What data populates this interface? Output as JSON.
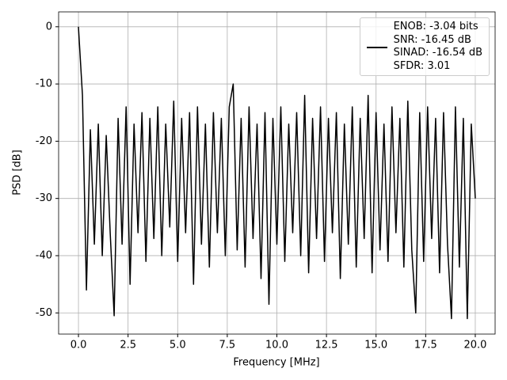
{
  "chart_data": {
    "type": "line",
    "xlabel": "Frequency [MHz]",
    "ylabel": "PSD [dB]",
    "x": [
      0,
      0.2,
      0.4,
      0.6,
      0.8,
      1,
      1.2,
      1.4,
      1.6,
      1.8,
      2,
      2.2,
      2.4,
      2.6,
      2.8,
      3,
      3.2,
      3.4,
      3.6,
      3.8,
      4,
      4.2,
      4.4,
      4.6,
      4.8,
      5,
      5.2,
      5.4,
      5.6,
      5.8,
      6,
      6.2,
      6.4,
      6.6,
      6.8,
      7,
      7.2,
      7.4,
      7.6,
      7.8,
      8,
      8.2,
      8.4,
      8.6,
      8.8,
      9,
      9.2,
      9.4,
      9.6,
      9.8,
      10,
      10.2,
      10.4,
      10.6,
      10.8,
      11,
      11.2,
      11.4,
      11.6,
      11.8,
      12,
      12.2,
      12.4,
      12.6,
      12.8,
      13,
      13.2,
      13.4,
      13.6,
      13.8,
      14,
      14.2,
      14.4,
      14.6,
      14.8,
      15,
      15.2,
      15.4,
      15.6,
      15.8,
      16,
      16.2,
      16.4,
      16.6,
      16.8,
      17,
      17.2,
      17.4,
      17.6,
      17.8,
      18,
      18.2,
      18.4,
      18.6,
      18.8,
      19,
      19.2,
      19.4,
      19.6,
      19.8,
      20
    ],
    "series": [
      {
        "name": "ENOB: -3.04 bits\nSNR: -16.45 dB\nSINAD: -16.54 dB\nSFDR: 3.01",
        "color": "#000000",
        "values": [
          0,
          -12,
          -46,
          -18,
          -38,
          -17,
          -40,
          -19,
          -36,
          -50.5,
          -16,
          -38,
          -14,
          -45,
          -17,
          -36,
          -15,
          -41,
          -16,
          -37,
          -14,
          -40,
          -17,
          -35,
          -13,
          -41,
          -16,
          -36,
          -15,
          -45,
          -14,
          -38,
          -17,
          -42,
          -15,
          -36,
          -16,
          -40,
          -14,
          -10,
          -39,
          -16,
          -42,
          -14,
          -37,
          -17,
          -44,
          -15,
          -48.5,
          -16,
          -38,
          -14,
          -41,
          -17,
          -36,
          -15,
          -40,
          -12,
          -43,
          -16,
          -37,
          -14,
          -41,
          -16,
          -36,
          -15,
          -44,
          -17,
          -38,
          -14,
          -42,
          -16,
          -37,
          -12,
          -43,
          -15,
          -39,
          -17,
          -41,
          -14,
          -36,
          -16,
          -42,
          -13,
          -39,
          -50,
          -15,
          -41,
          -14,
          -37,
          -16,
          -43,
          -15,
          -38,
          -51,
          -14,
          -42,
          -16,
          -51,
          -17,
          -30
        ]
      }
    ],
    "xlim": [
      -1,
      21
    ],
    "ylim": [
      -53.7,
      2.6
    ],
    "xticks": [
      {
        "value": 0,
        "label": "0.0"
      },
      2.5,
      {
        "value": 5,
        "label": "5.0"
      },
      7.5,
      {
        "value": 10,
        "label": "10.0"
      },
      12.5,
      {
        "value": 15,
        "label": "15.0"
      },
      17.5,
      {
        "value": 20,
        "label": "20.0"
      }
    ],
    "yticks": [
      0,
      -10,
      -20,
      -30,
      -40,
      -50
    ],
    "grid": true,
    "legend": "upper right"
  }
}
